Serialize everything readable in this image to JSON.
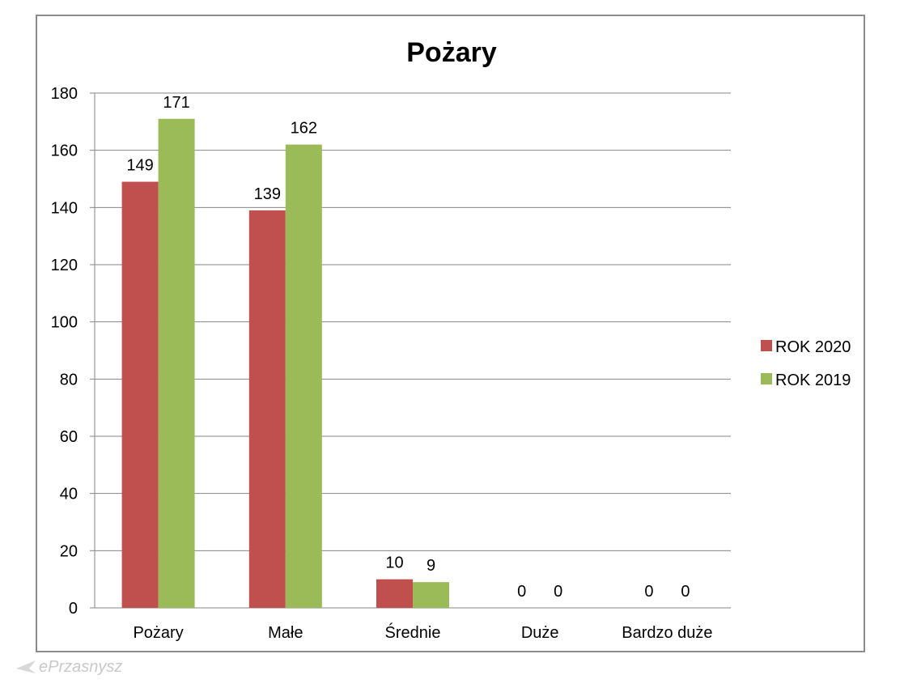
{
  "chart_data": {
    "type": "bar",
    "title": "Pożary",
    "categories": [
      "Pożary",
      "Małe",
      "Średnie",
      "Duże",
      "Bardzo duże"
    ],
    "series": [
      {
        "name": "ROK 2020",
        "values": [
          149,
          139,
          10,
          0,
          0
        ],
        "color": "#C0504D"
      },
      {
        "name": "ROK 2019",
        "values": [
          171,
          162,
          9,
          0,
          0
        ],
        "color": "#9BBB59"
      }
    ],
    "ylim": [
      0,
      180
    ],
    "yticks": [
      0,
      20,
      40,
      60,
      80,
      100,
      120,
      140,
      160,
      180
    ],
    "grid": true,
    "legend_position": "right",
    "data_labels": true
  },
  "watermark": {
    "text": "ePrzasnysz"
  }
}
